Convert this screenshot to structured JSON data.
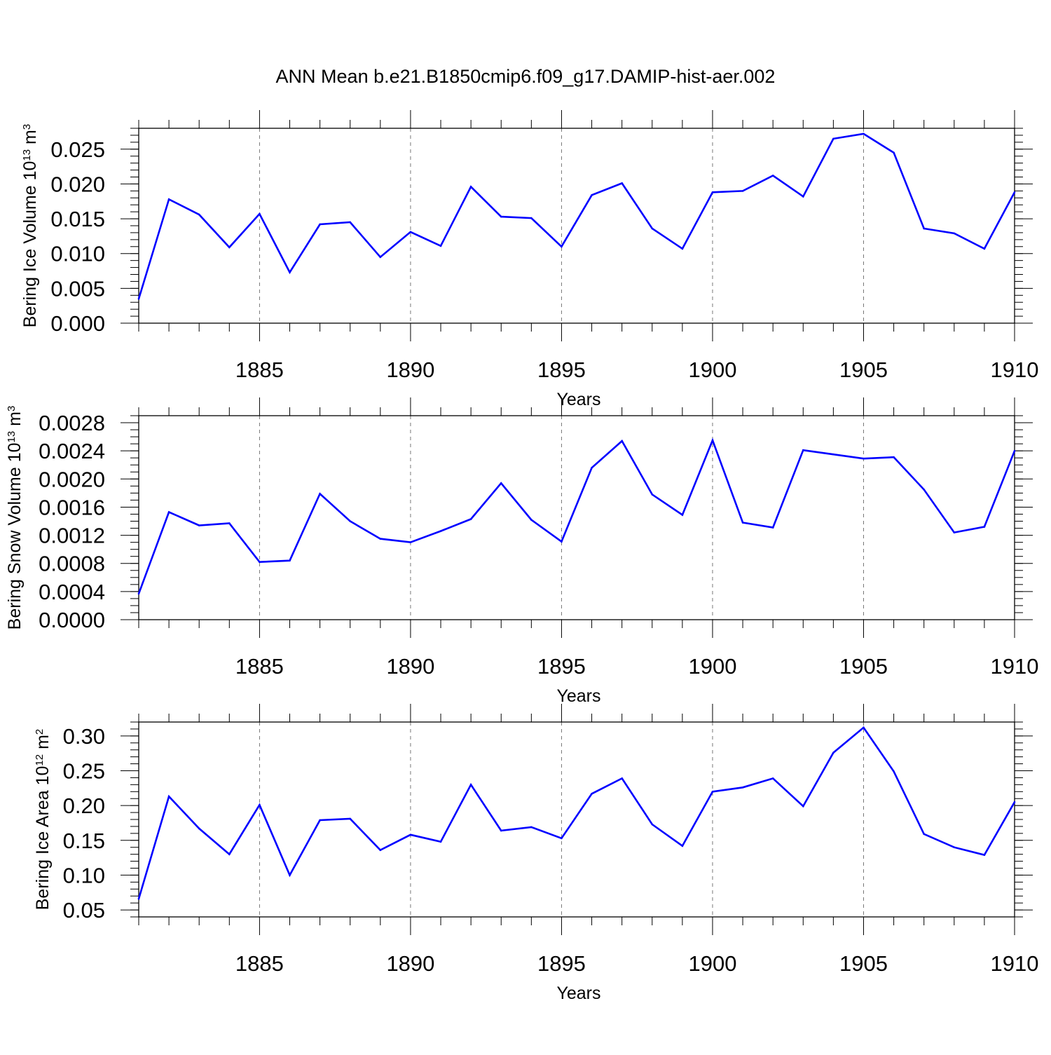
{
  "title": "ANN Mean b.e21.B1850cmip6.f09_g17.DAMIP-hist-aer.002",
  "colors": {
    "line": "#0000ff",
    "axis": "#000000",
    "grid": "#777777"
  },
  "chart_data": [
    {
      "type": "line",
      "ylabel": "Bering Ice Volume 10",
      "ylabel_exp": "13",
      "ylabel_unit": " m",
      "ylabel_unit_exp": "3",
      "xlabel": "Years",
      "xlim": [
        1881,
        1910
      ],
      "ylim": [
        0.0,
        0.028
      ],
      "yticks": [
        0.0,
        0.005,
        0.01,
        0.015,
        0.02,
        0.025
      ],
      "ytick_labels": [
        "0.000",
        "0.005",
        "0.010",
        "0.015",
        "0.020",
        "0.025"
      ],
      "yminor_step": 0.001,
      "xticks": [
        1885,
        1890,
        1895,
        1900,
        1905,
        1910
      ],
      "xtick_labels": [
        "1885",
        "1890",
        "1895",
        "1900",
        "1905",
        "1910"
      ],
      "grid_x": [
        1885,
        1890,
        1895,
        1900,
        1905
      ],
      "x": [
        1881,
        1882,
        1883,
        1884,
        1885,
        1886,
        1887,
        1888,
        1889,
        1890,
        1891,
        1892,
        1893,
        1894,
        1895,
        1896,
        1897,
        1898,
        1899,
        1900,
        1901,
        1902,
        1903,
        1904,
        1905,
        1906,
        1907,
        1908,
        1909,
        1910
      ],
      "y": [
        0.0035,
        0.0178,
        0.0156,
        0.0109,
        0.0157,
        0.0073,
        0.0142,
        0.0145,
        0.0095,
        0.0131,
        0.0111,
        0.0196,
        0.0153,
        0.0151,
        0.011,
        0.0184,
        0.0201,
        0.0136,
        0.0107,
        0.0188,
        0.019,
        0.0212,
        0.0182,
        0.0265,
        0.0272,
        0.0245,
        0.0136,
        0.0129,
        0.0107,
        0.0188
      ]
    },
    {
      "type": "line",
      "ylabel": "Bering Snow Volume 10",
      "ylabel_exp": "13",
      "ylabel_unit": " m",
      "ylabel_unit_exp": "3",
      "xlabel": "Years",
      "xlim": [
        1881,
        1910
      ],
      "ylim": [
        0.0,
        0.0029
      ],
      "yticks": [
        0.0,
        0.0004,
        0.0008,
        0.0012,
        0.0016,
        0.002,
        0.0024,
        0.0028
      ],
      "ytick_labels": [
        "0.0000",
        "0.0004",
        "0.0008",
        "0.0012",
        "0.0016",
        "0.0020",
        "0.0024",
        "0.0028"
      ],
      "yminor_step": 0.0001,
      "xticks": [
        1885,
        1890,
        1895,
        1900,
        1905,
        1910
      ],
      "xtick_labels": [
        "1885",
        "1890",
        "1895",
        "1900",
        "1905",
        "1910"
      ],
      "grid_x": [
        1885,
        1890,
        1895,
        1900,
        1905
      ],
      "x": [
        1881,
        1882,
        1883,
        1884,
        1885,
        1886,
        1887,
        1888,
        1889,
        1890,
        1891,
        1892,
        1893,
        1894,
        1895,
        1896,
        1897,
        1898,
        1899,
        1900,
        1901,
        1902,
        1903,
        1904,
        1905,
        1906,
        1907,
        1908,
        1909,
        1910
      ],
      "y": [
        0.00037,
        0.00153,
        0.00134,
        0.00137,
        0.00082,
        0.00084,
        0.00179,
        0.0014,
        0.00115,
        0.0011,
        0.00126,
        0.00143,
        0.00194,
        0.00142,
        0.00111,
        0.00216,
        0.00254,
        0.00178,
        0.00149,
        0.00255,
        0.00138,
        0.00131,
        0.00241,
        0.00235,
        0.00229,
        0.00231,
        0.00185,
        0.00124,
        0.00132,
        0.0024
      ]
    },
    {
      "type": "line",
      "ylabel": "Bering Ice Area 10",
      "ylabel_exp": "12",
      "ylabel_unit": " m",
      "ylabel_unit_exp": "2",
      "xlabel": "Years",
      "xlim": [
        1881,
        1910
      ],
      "ylim": [
        0.04,
        0.32
      ],
      "yticks": [
        0.05,
        0.1,
        0.15,
        0.2,
        0.25,
        0.3
      ],
      "ytick_labels": [
        "0.05",
        "0.10",
        "0.15",
        "0.20",
        "0.25",
        "0.30"
      ],
      "yminor_step": 0.01,
      "xticks": [
        1885,
        1890,
        1895,
        1900,
        1905,
        1910
      ],
      "xtick_labels": [
        "1885",
        "1890",
        "1895",
        "1900",
        "1905",
        "1910"
      ],
      "grid_x": [
        1885,
        1890,
        1895,
        1900,
        1905
      ],
      "x": [
        1881,
        1882,
        1883,
        1884,
        1885,
        1886,
        1887,
        1888,
        1889,
        1890,
        1891,
        1892,
        1893,
        1894,
        1895,
        1896,
        1897,
        1898,
        1899,
        1900,
        1901,
        1902,
        1903,
        1904,
        1905,
        1906,
        1907,
        1908,
        1909,
        1910
      ],
      "y": [
        0.066,
        0.213,
        0.167,
        0.13,
        0.201,
        0.1,
        0.179,
        0.181,
        0.136,
        0.158,
        0.148,
        0.23,
        0.164,
        0.169,
        0.153,
        0.217,
        0.239,
        0.173,
        0.142,
        0.22,
        0.226,
        0.239,
        0.199,
        0.276,
        0.312,
        0.249,
        0.159,
        0.14,
        0.129,
        0.205
      ]
    }
  ]
}
